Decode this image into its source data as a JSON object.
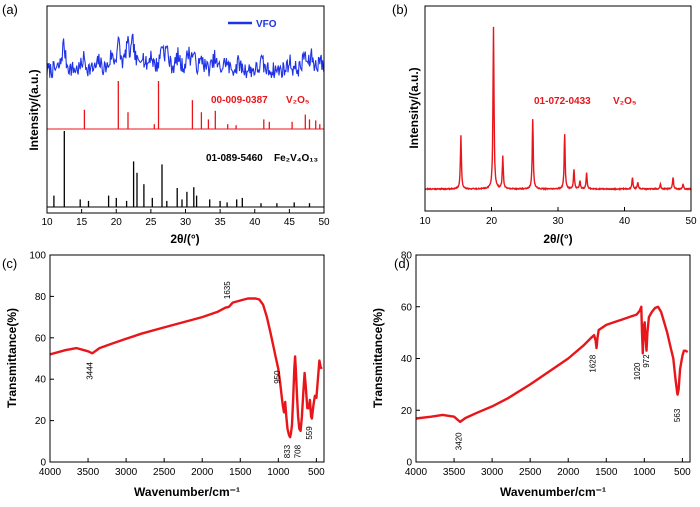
{
  "colors": {
    "red": "#e8161b",
    "blue": "#1f33e6",
    "black": "#000000"
  },
  "panels": {
    "a": {
      "label": "(a)",
      "xlabel": "2θ/(°)",
      "ylabel": "Intensity/(a.u.)",
      "legend": "VFO",
      "ref1_code": "00-009-0387",
      "ref1_formula": "V₂O₅",
      "ref2_code": "01-089-5460",
      "ref2_formula": "Fe₂V₄O₁₃"
    },
    "b": {
      "label": "(b)",
      "xlabel": "2θ/(°)",
      "ylabel": "Intensity/(a.u.)",
      "ref_code": "01-072-0433",
      "ref_formula": "V₂O₅"
    },
    "c": {
      "label": "(c)",
      "xlabel": "Wavenumber/cm⁻¹",
      "ylabel": "Transmittance(%)"
    },
    "d": {
      "label": "(d)",
      "xlabel": "Wavenumber/cm⁻¹",
      "ylabel": "Transmittance(%)"
    }
  },
  "chart_data": [
    {
      "id": "a",
      "type": "line",
      "xlim": [
        10,
        50
      ],
      "xticks": [
        10,
        15,
        20,
        25,
        30,
        35,
        40,
        45,
        50
      ],
      "series": [
        {
          "name": "VFO",
          "color": "#1f33e6",
          "peaks": [
            [
              12.4,
              1.0
            ],
            [
              15.3,
              0.45
            ],
            [
              17.5,
              0.35
            ],
            [
              19.3,
              0.5
            ],
            [
              20.3,
              1.0
            ],
            [
              21.6,
              0.9
            ],
            [
              22.4,
              0.95
            ],
            [
              23.7,
              0.6
            ],
            [
              25.0,
              0.55
            ],
            [
              26.6,
              0.9
            ],
            [
              27.3,
              0.7
            ],
            [
              28.9,
              0.5
            ],
            [
              30.4,
              0.6
            ],
            [
              31.1,
              0.55
            ],
            [
              32.4,
              0.4
            ],
            [
              34.2,
              0.45
            ],
            [
              35.8,
              0.35
            ],
            [
              37.7,
              0.3
            ],
            [
              41.0,
              0.35
            ],
            [
              45.0,
              0.35
            ],
            [
              47.2,
              0.6
            ],
            [
              48.2,
              0.5
            ],
            [
              49.4,
              0.45
            ]
          ]
        },
        {
          "ref": "00-009-0387",
          "color": "#e8161b",
          "sticks": [
            [
              15.4,
              0.4
            ],
            [
              20.3,
              1.0
            ],
            [
              21.7,
              0.35
            ],
            [
              25.5,
              0.1
            ],
            [
              26.1,
              1.0
            ],
            [
              31.0,
              0.6
            ],
            [
              32.3,
              0.35
            ],
            [
              33.3,
              0.2
            ],
            [
              34.3,
              0.38
            ],
            [
              36.1,
              0.1
            ],
            [
              37.3,
              0.08
            ],
            [
              41.3,
              0.2
            ],
            [
              42.1,
              0.15
            ],
            [
              45.4,
              0.15
            ],
            [
              47.3,
              0.3
            ],
            [
              47.9,
              0.2
            ],
            [
              48.8,
              0.18
            ],
            [
              49.4,
              0.1
            ]
          ]
        },
        {
          "ref": "01-089-5460",
          "color": "#000000",
          "sticks": [
            [
              11.0,
              0.15
            ],
            [
              12.5,
              1.0
            ],
            [
              14.8,
              0.1
            ],
            [
              16.0,
              0.08
            ],
            [
              18.9,
              0.15
            ],
            [
              20.0,
              0.12
            ],
            [
              21.5,
              0.08
            ],
            [
              22.5,
              0.6
            ],
            [
              23.0,
              0.45
            ],
            [
              24.0,
              0.3
            ],
            [
              25.2,
              0.12
            ],
            [
              26.6,
              0.56
            ],
            [
              27.3,
              0.08
            ],
            [
              28.8,
              0.25
            ],
            [
              29.5,
              0.1
            ],
            [
              30.2,
              0.2
            ],
            [
              31.2,
              0.26
            ],
            [
              31.6,
              0.15
            ],
            [
              33.5,
              0.1
            ],
            [
              35.0,
              0.08
            ],
            [
              36.0,
              0.06
            ],
            [
              37.4,
              0.1
            ],
            [
              38.2,
              0.12
            ],
            [
              40.9,
              0.05
            ],
            [
              43.2,
              0.05
            ],
            [
              45.7,
              0.06
            ],
            [
              47.9,
              0.05
            ]
          ]
        }
      ]
    },
    {
      "id": "b",
      "type": "line",
      "xlim": [
        10,
        50
      ],
      "xticks": [
        10,
        20,
        30,
        40,
        50
      ],
      "series": [
        {
          "color": "#e8161b",
          "peaks": [
            [
              15.4,
              0.33
            ],
            [
              20.3,
              1.0
            ],
            [
              21.7,
              0.2
            ],
            [
              26.2,
              0.43
            ],
            [
              31.0,
              0.34
            ],
            [
              32.4,
              0.12
            ],
            [
              33.3,
              0.05
            ],
            [
              34.3,
              0.1
            ],
            [
              41.2,
              0.07
            ],
            [
              42.0,
              0.04
            ],
            [
              45.4,
              0.03
            ],
            [
              47.3,
              0.07
            ],
            [
              48.8,
              0.03
            ]
          ]
        }
      ]
    },
    {
      "id": "c",
      "type": "line",
      "xlim": [
        4000,
        400
      ],
      "ylim": [
        0,
        100
      ],
      "xticks": [
        4000,
        3500,
        3000,
        2500,
        2000,
        1500,
        1000,
        500
      ],
      "yticks": [
        0,
        20,
        40,
        60,
        80,
        100
      ],
      "annotations": [
        "3444",
        "1635",
        "950",
        "833",
        "708",
        "559"
      ],
      "series": [
        {
          "color": "#e8161b",
          "points": [
            [
              4000,
              52
            ],
            [
              3800,
              54
            ],
            [
              3650,
              55
            ],
            [
              3500,
              53.5
            ],
            [
              3444,
              52.5
            ],
            [
              3350,
              55
            ],
            [
              3200,
              57
            ],
            [
              3000,
              59.5
            ],
            [
              2800,
              62
            ],
            [
              2500,
              65
            ],
            [
              2000,
              70
            ],
            [
              1800,
              72.5
            ],
            [
              1700,
              74.5
            ],
            [
              1650,
              75
            ],
            [
              1635,
              75.5
            ],
            [
              1600,
              77
            ],
            [
              1500,
              78
            ],
            [
              1400,
              79
            ],
            [
              1300,
              79
            ],
            [
              1250,
              78.5
            ],
            [
              1200,
              76
            ],
            [
              1150,
              70
            ],
            [
              1100,
              62
            ],
            [
              1060,
              55
            ],
            [
              1030,
              50
            ],
            [
              1000,
              45
            ],
            [
              975,
              38
            ],
            [
              960,
              33
            ],
            [
              950,
              30
            ],
            [
              940,
              27
            ],
            [
              925,
              24
            ],
            [
              910,
              29
            ],
            [
              895,
              22
            ],
            [
              880,
              16
            ],
            [
              860,
              13
            ],
            [
              845,
              12
            ],
            [
              833,
              14
            ],
            [
              820,
              18
            ],
            [
              805,
              31
            ],
            [
              790,
              45
            ],
            [
              780,
              51
            ],
            [
              770,
              45
            ],
            [
              755,
              32
            ],
            [
              740,
              22
            ],
            [
              725,
              16
            ],
            [
              708,
              15
            ],
            [
              690,
              22
            ],
            [
              670,
              35
            ],
            [
              655,
              43
            ],
            [
              640,
              37
            ],
            [
              620,
              26
            ],
            [
              600,
              26
            ],
            [
              585,
              30
            ],
            [
              570,
              22
            ],
            [
              559,
              21
            ],
            [
              540,
              27
            ],
            [
              520,
              32
            ],
            [
              500,
              31
            ],
            [
              480,
              40
            ],
            [
              460,
              49
            ],
            [
              445,
              46
            ],
            [
              430,
              45
            ]
          ]
        }
      ]
    },
    {
      "id": "d",
      "type": "line",
      "xlim": [
        4000,
        400
      ],
      "ylim": [
        0,
        80
      ],
      "xticks": [
        4000,
        3500,
        3000,
        2500,
        2000,
        1500,
        1000,
        500
      ],
      "yticks": [
        0,
        20,
        40,
        60,
        80
      ],
      "annotations": [
        "3420",
        "1628",
        "1020",
        "972",
        "563"
      ],
      "series": [
        {
          "color": "#e8161b",
          "points": [
            [
              4000,
              16.8
            ],
            [
              3800,
              17.5
            ],
            [
              3650,
              18.2
            ],
            [
              3500,
              17.5
            ],
            [
              3420,
              15.5
            ],
            [
              3350,
              17
            ],
            [
              3200,
              19
            ],
            [
              3000,
              21.5
            ],
            [
              2800,
              24.5
            ],
            [
              2500,
              30
            ],
            [
              2200,
              36
            ],
            [
              2000,
              40
            ],
            [
              1800,
              45
            ],
            [
              1700,
              48
            ],
            [
              1660,
              49
            ],
            [
              1640,
              47
            ],
            [
              1628,
              44
            ],
            [
              1615,
              48
            ],
            [
              1600,
              51
            ],
            [
              1500,
              53
            ],
            [
              1400,
              54
            ],
            [
              1300,
              55
            ],
            [
              1200,
              56
            ],
            [
              1100,
              57
            ],
            [
              1060,
              58.5
            ],
            [
              1040,
              60
            ],
            [
              1030,
              50
            ],
            [
              1020,
              42
            ],
            [
              1010,
              52
            ],
            [
              995,
              54
            ],
            [
              985,
              48
            ],
            [
              972,
              43
            ],
            [
              960,
              50
            ],
            [
              940,
              56
            ],
            [
              900,
              58
            ],
            [
              860,
              59.5
            ],
            [
              820,
              60
            ],
            [
              780,
              58
            ],
            [
              750,
              55
            ],
            [
              700,
              50
            ],
            [
              660,
              45
            ],
            [
              620,
              40
            ],
            [
              590,
              32
            ],
            [
              570,
              27
            ],
            [
              563,
              26
            ],
            [
              550,
              28
            ],
            [
              530,
              36
            ],
            [
              500,
              41
            ],
            [
              480,
              43
            ],
            [
              460,
              43
            ],
            [
              430,
              42.5
            ]
          ]
        }
      ]
    }
  ]
}
